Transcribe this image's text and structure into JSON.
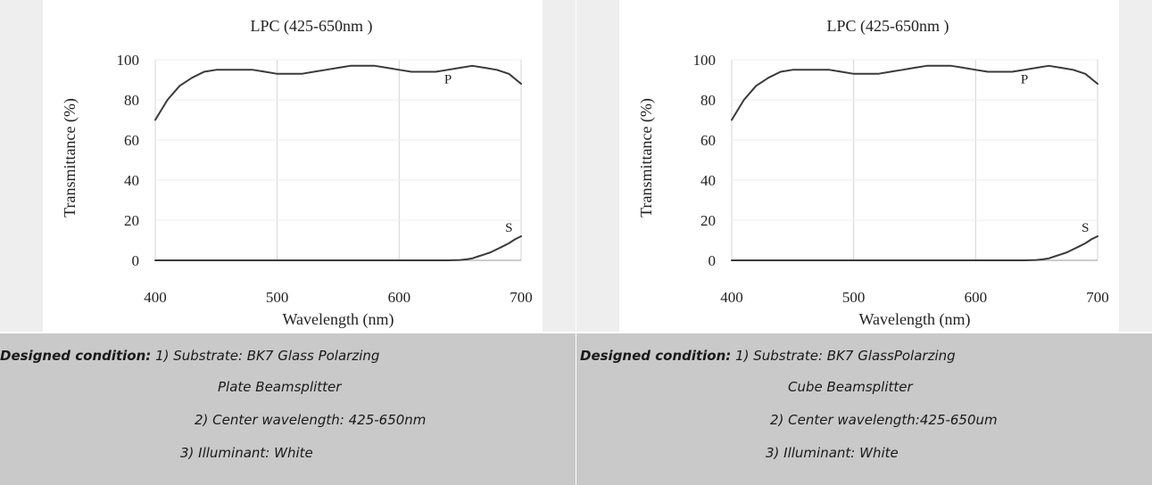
{
  "chart_data": [
    {
      "type": "line",
      "title": "LPC (425-650nm )",
      "xlabel": "Wavelength (nm)",
      "ylabel": "Transmittance   (%)",
      "xlim": [
        400,
        700
      ],
      "ylim": [
        0,
        100
      ],
      "x_ticks": [
        "400",
        "500",
        "600",
        "700"
      ],
      "y_ticks": [
        "0",
        "20",
        "40",
        "60",
        "80",
        "100"
      ],
      "grid": "vertical",
      "series": [
        {
          "name": "P",
          "x": [
            400,
            410,
            420,
            430,
            440,
            450,
            460,
            470,
            480,
            490,
            500,
            510,
            520,
            530,
            540,
            550,
            560,
            570,
            580,
            590,
            600,
            610,
            620,
            630,
            640,
            650,
            660,
            670,
            680,
            690,
            700
          ],
          "y": [
            70,
            80,
            87,
            91,
            94,
            95,
            95,
            95,
            95,
            94,
            93,
            93,
            93,
            94,
            95,
            96,
            97,
            97,
            97,
            96,
            95,
            94,
            94,
            94,
            95,
            96,
            97,
            96,
            95,
            93,
            88
          ]
        },
        {
          "name": "S",
          "x": [
            400,
            450,
            500,
            550,
            600,
            640,
            650,
            655,
            660,
            665,
            670,
            675,
            680,
            685,
            690,
            695,
            700
          ],
          "y": [
            0,
            0,
            0,
            0,
            0,
            0,
            0.2,
            0.5,
            1,
            2,
            3,
            4,
            5.5,
            7,
            8.5,
            10.5,
            12
          ]
        }
      ]
    },
    {
      "type": "line",
      "title": "LPC (425-650nm )",
      "xlabel": "Wavelength (nm)",
      "ylabel": "Transmittance   (%)",
      "xlim": [
        400,
        700
      ],
      "ylim": [
        0,
        100
      ],
      "x_ticks": [
        "400",
        "500",
        "600",
        "700"
      ],
      "y_ticks": [
        "0",
        "20",
        "40",
        "60",
        "80",
        "100"
      ],
      "grid": "vertical",
      "series": [
        {
          "name": "P",
          "x": [
            400,
            410,
            420,
            430,
            440,
            450,
            460,
            470,
            480,
            490,
            500,
            510,
            520,
            530,
            540,
            550,
            560,
            570,
            580,
            590,
            600,
            610,
            620,
            630,
            640,
            650,
            660,
            670,
            680,
            690,
            700
          ],
          "y": [
            70,
            80,
            87,
            91,
            94,
            95,
            95,
            95,
            95,
            94,
            93,
            93,
            93,
            94,
            95,
            96,
            97,
            97,
            97,
            96,
            95,
            94,
            94,
            94,
            95,
            96,
            97,
            96,
            95,
            93,
            88
          ]
        },
        {
          "name": "S",
          "x": [
            400,
            450,
            500,
            550,
            600,
            640,
            650,
            655,
            660,
            665,
            670,
            675,
            680,
            685,
            690,
            695,
            700
          ],
          "y": [
            0,
            0,
            0,
            0,
            0,
            0,
            0.2,
            0.5,
            1,
            2,
            3,
            4,
            5.5,
            7,
            8.5,
            10.5,
            12
          ]
        }
      ]
    }
  ],
  "captions": [
    {
      "lead": "Designed condition:",
      "line1": " 1) Substrate: BK7 Glass Polarzing",
      "line2": "Plate Beamsplitter",
      "line3": "2) Center wavelength: 425-650nm",
      "line4": "3) Illuminant: White"
    },
    {
      "lead": "Designed condition:",
      "line1": " 1) Substrate: BK7 GlassPolarzing",
      "line2": "Cube Beamsplitter",
      "line3": "2) Center wavelength:425-650um",
      "line4": "3) Illuminant: White"
    }
  ]
}
